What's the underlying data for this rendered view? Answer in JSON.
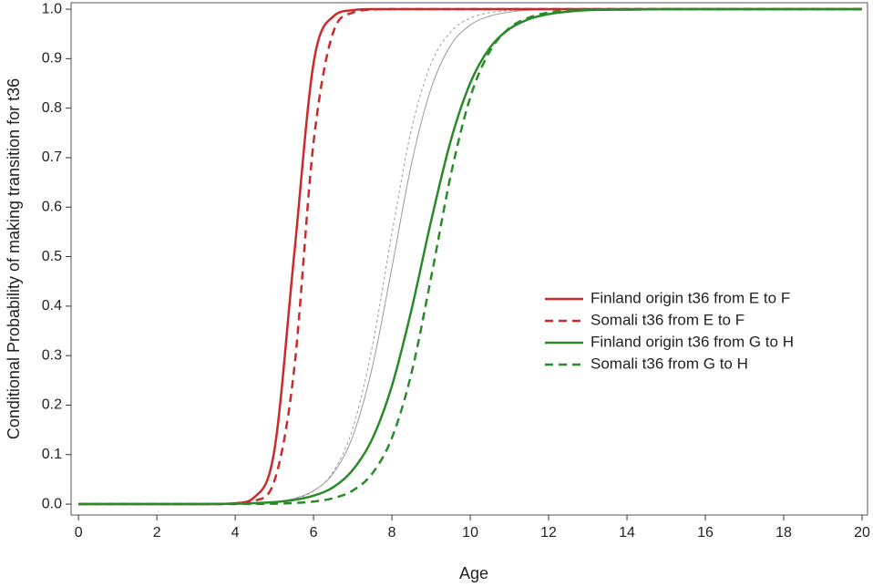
{
  "chart_data": {
    "type": "line",
    "xlabel": "Age",
    "ylabel": "Conditional Probability of making transition for t36",
    "x": [
      0,
      1,
      2,
      3,
      3.5,
      4,
      4.5,
      5,
      5.5,
      6,
      6.5,
      7,
      7.5,
      8,
      8.5,
      9,
      9.5,
      10,
      10.5,
      11,
      11.5,
      12,
      12.5,
      13,
      14,
      15,
      16,
      17,
      18,
      19,
      20
    ],
    "series": [
      {
        "color": "#9a9a9a",
        "style": "solid",
        "width": 1,
        "values": [
          0,
          0,
          0,
          0.0001,
          0.0003,
          0.0008,
          0.002,
          0.0048,
          0.0114,
          0.0269,
          0.062,
          0.137,
          0.277,
          0.478,
          0.688,
          0.84,
          0.927,
          0.968,
          0.986,
          0.994,
          0.998,
          0.999,
          1,
          1,
          1,
          1,
          1,
          1,
          1,
          1,
          1
        ]
      },
      {
        "color": "#9a9a9a",
        "style": "dashed",
        "width": 1,
        "values": [
          0,
          0,
          0,
          0.0001,
          0.0002,
          0.0006,
          0.0016,
          0.004,
          0.0103,
          0.0263,
          0.0654,
          0.153,
          0.319,
          0.547,
          0.758,
          0.89,
          0.954,
          0.982,
          0.993,
          0.997,
          0.999,
          1,
          1,
          1,
          1,
          1,
          1,
          1,
          1,
          1,
          1
        ]
      },
      {
        "name": "Finland origin t36 from E to F",
        "color": "#cc2a2a",
        "style": "solid",
        "width": 2.5,
        "values": [
          0,
          0,
          0,
          0,
          0.0002,
          0.0018,
          0.0148,
          0.109,
          0.5,
          0.891,
          0.985,
          0.998,
          1,
          1,
          1,
          1,
          1,
          1,
          1,
          1,
          1,
          1,
          1,
          1,
          1,
          1,
          1,
          1,
          1,
          1,
          1
        ]
      },
      {
        "name": "Somali t36 from E to F",
        "color": "#cc2a2a",
        "style": "dashed",
        "width": 2.5,
        "values": [
          0,
          0,
          0,
          0,
          0.0001,
          0.0009,
          0.0067,
          0.047,
          0.269,
          0.731,
          0.953,
          0.993,
          0.999,
          1,
          1,
          1,
          1,
          1,
          1,
          1,
          1,
          1,
          1,
          1,
          1,
          1,
          1,
          1,
          1,
          1,
          1
        ]
      },
      {
        "name": "Finland origin t36 from G to H",
        "color": "#2a8a2a",
        "style": "solid",
        "width": 2.5,
        "values": [
          0,
          0,
          0.0001,
          0.0002,
          0.0005,
          0.0009,
          0.002,
          0.004,
          0.0083,
          0.017,
          0.034,
          0.069,
          0.132,
          0.239,
          0.393,
          0.572,
          0.734,
          0.851,
          0.922,
          0.96,
          0.98,
          0.99,
          0.995,
          0.998,
          0.999,
          1,
          1,
          1,
          1,
          1,
          1
        ]
      },
      {
        "name": "Somali t36 from G to H",
        "color": "#2a8a2a",
        "style": "dashed",
        "width": 2.5,
        "values": [
          0,
          0,
          0,
          0,
          0.0001,
          0.0002,
          0.0004,
          0.0009,
          0.0022,
          0.0051,
          0.0119,
          0.0274,
          0.062,
          0.134,
          0.265,
          0.458,
          0.664,
          0.822,
          0.915,
          0.962,
          0.983,
          0.993,
          0.997,
          0.999,
          1,
          1,
          1,
          1,
          1,
          1,
          1
        ]
      }
    ],
    "xlim": [
      -0.19,
      20.14
    ],
    "ylim": [
      -0.022,
      1.013
    ],
    "xticks": [
      0,
      2,
      4,
      6,
      8,
      10,
      12,
      14,
      16,
      18,
      20
    ],
    "yticks": [
      {
        "value": 0,
        "label": "0.0"
      },
      0.1,
      0.2,
      0.3,
      0.4,
      0.5,
      0.6,
      0.7,
      0.8,
      0.9,
      {
        "value": 1,
        "label": "1.0"
      }
    ],
    "grid": false,
    "legend_position": "right"
  }
}
